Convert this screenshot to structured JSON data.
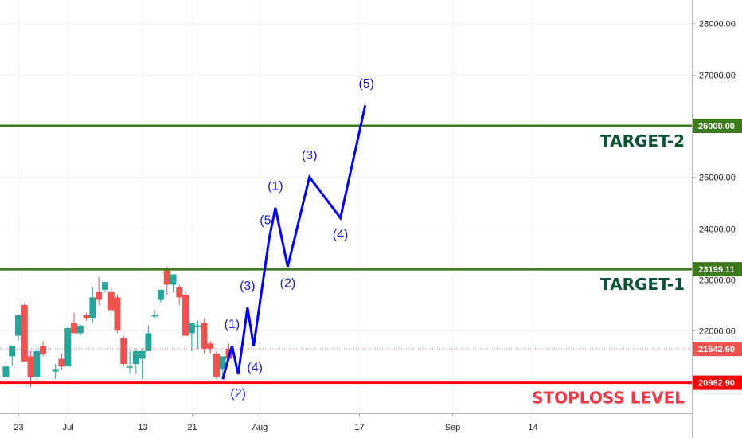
{
  "chart_data": {
    "type": "candlestick",
    "y_axis": {
      "min": 20500,
      "max": 28500,
      "ticks": [
        "28000.00",
        "27000.00",
        "26000.00",
        "25000.00",
        "24000.00",
        "23000.00",
        "22000.00"
      ]
    },
    "x_axis": {
      "ticks": [
        {
          "label": "23",
          "day": 0
        },
        {
          "label": "Jul",
          "day": 8
        },
        {
          "label": "13",
          "day": 20
        },
        {
          "label": "21",
          "day": 28
        },
        {
          "label": "Aug",
          "day": 39
        },
        {
          "label": "17",
          "day": 55
        },
        {
          "label": "Sep",
          "day": 70
        },
        {
          "label": "14",
          "day": 83
        }
      ],
      "day_range": [
        -2,
        83
      ]
    },
    "colors": {
      "up": "#26a69a",
      "down": "#ef5350",
      "target": "#3c7a1c",
      "stoploss": "#ff0000",
      "wave": "#0000ff",
      "last_price": "#ef5350",
      "target_text": "#0b5336",
      "stoploss_text": "#f23645"
    },
    "levels": [
      {
        "name": "TARGET-2",
        "label": "TARGET-2",
        "price": 26000.0,
        "badge": "26000.00",
        "kind": "target"
      },
      {
        "name": "TARGET-1",
        "label": "TARGET-1",
        "price": 23199.11,
        "badge": "23199.11",
        "kind": "target"
      },
      {
        "name": "STOPLOSS",
        "label": "STOPLOSS LEVEL",
        "price": 20982.9,
        "badge": "20982.90",
        "kind": "stoploss"
      }
    ],
    "last_price": {
      "price": 21642.6,
      "badge": "21642.60"
    },
    "candles": [
      {
        "day": -2,
        "o": 21100,
        "h": 21400,
        "l": 20950,
        "c": 21300
      },
      {
        "day": -1,
        "o": 21500,
        "h": 21700,
        "l": 21300,
        "c": 21700
      },
      {
        "day": 0,
        "o": 21900,
        "h": 22300,
        "l": 21800,
        "c": 22300
      },
      {
        "day": 1,
        "o": 22500,
        "h": 22550,
        "l": 21400,
        "c": 21400
      },
      {
        "day": 2,
        "o": 21500,
        "h": 21600,
        "l": 20900,
        "c": 21100
      },
      {
        "day": 3,
        "o": 21100,
        "h": 21700,
        "l": 21000,
        "c": 21600
      },
      {
        "day": 4,
        "o": 21700,
        "h": 21800,
        "l": 21500,
        "c": 21550
      },
      {
        "day": 6,
        "o": 21200,
        "h": 21350,
        "l": 21050,
        "c": 21250
      },
      {
        "day": 7,
        "o": 21450,
        "h": 21550,
        "l": 21250,
        "c": 21300
      },
      {
        "day": 8,
        "o": 21300,
        "h": 22100,
        "l": 21300,
        "c": 22050
      },
      {
        "day": 9,
        "o": 22150,
        "h": 22350,
        "l": 21950,
        "c": 21950
      },
      {
        "day": 10,
        "o": 21950,
        "h": 22150,
        "l": 21900,
        "c": 22100
      },
      {
        "day": 11,
        "o": 22300,
        "h": 22350,
        "l": 22200,
        "c": 22250
      },
      {
        "day": 12,
        "o": 22250,
        "h": 22850,
        "l": 22150,
        "c": 22650
      },
      {
        "day": 13,
        "o": 22750,
        "h": 23050,
        "l": 22500,
        "c": 22600
      },
      {
        "day": 14,
        "o": 22800,
        "h": 22950,
        "l": 22750,
        "c": 22950
      },
      {
        "day": 15,
        "o": 22750,
        "h": 22850,
        "l": 22350,
        "c": 22400
      },
      {
        "day": 16,
        "o": 22650,
        "h": 22700,
        "l": 21950,
        "c": 22000
      },
      {
        "day": 17,
        "o": 21850,
        "h": 21900,
        "l": 21300,
        "c": 21350
      },
      {
        "day": 18,
        "o": 21300,
        "h": 21600,
        "l": 21150,
        "c": 21300
      },
      {
        "day": 19,
        "o": 21350,
        "h": 21650,
        "l": 21150,
        "c": 21600
      },
      {
        "day": 20,
        "o": 21450,
        "h": 21650,
        "l": 21050,
        "c": 21600
      },
      {
        "day": 21,
        "o": 21600,
        "h": 22100,
        "l": 21600,
        "c": 21950
      },
      {
        "day": 22,
        "o": 22300,
        "h": 22400,
        "l": 22250,
        "c": 22300
      },
      {
        "day": 23,
        "o": 22600,
        "h": 22800,
        "l": 22550,
        "c": 22800
      },
      {
        "day": 24,
        "o": 23200,
        "h": 23250,
        "l": 22700,
        "c": 22900
      },
      {
        "day": 25,
        "o": 22900,
        "h": 23100,
        "l": 22750,
        "c": 23100
      },
      {
        "day": 26,
        "o": 22850,
        "h": 22900,
        "l": 22500,
        "c": 22650
      },
      {
        "day": 27,
        "o": 22700,
        "h": 22750,
        "l": 21900,
        "c": 21900
      },
      {
        "day": 28,
        "o": 21950,
        "h": 22150,
        "l": 21600,
        "c": 22150
      },
      {
        "day": 29,
        "o": 22100,
        "h": 22200,
        "l": 21650,
        "c": 22100
      },
      {
        "day": 30,
        "o": 22150,
        "h": 22250,
        "l": 21550,
        "c": 21650
      },
      {
        "day": 31,
        "o": 21750,
        "h": 21800,
        "l": 21550,
        "c": 21650
      },
      {
        "day": 32,
        "o": 21550,
        "h": 21600,
        "l": 21050,
        "c": 21100
      },
      {
        "day": 33,
        "o": 21250,
        "h": 21500,
        "l": 21100,
        "c": 21500
      },
      {
        "day": 34,
        "o": 21650,
        "h": 21750,
        "l": 21450,
        "c": 21450
      }
    ],
    "wave_path": [
      {
        "day": 33,
        "price": 21050
      },
      {
        "day": 34.5,
        "price": 21700
      },
      {
        "day": 35.5,
        "price": 21150
      },
      {
        "day": 37,
        "price": 22450
      },
      {
        "day": 38,
        "price": 21700
      },
      {
        "day": 40.5,
        "price": 23800
      },
      {
        "day": 41.5,
        "price": 24400
      },
      {
        "day": 43.5,
        "price": 23250
      },
      {
        "day": 47,
        "price": 25000
      },
      {
        "day": 52,
        "price": 24200
      },
      {
        "day": 56,
        "price": 26400
      }
    ],
    "wave_labels": [
      {
        "text": "(1)",
        "day": 34.5,
        "price": 22050
      },
      {
        "text": "(2)",
        "day": 35.5,
        "price": 20700
      },
      {
        "text": "(3)",
        "day": 37,
        "price": 22800
      },
      {
        "text": "(4)",
        "day": 38.2,
        "price": 21200
      },
      {
        "text": "(5",
        "day": 39.9,
        "price": 24080
      },
      {
        "text": "(1)",
        "day": 41.5,
        "price": 24750
      },
      {
        "text": "(2)",
        "day": 43.5,
        "price": 22850
      },
      {
        "text": "(3)",
        "day": 47,
        "price": 25350
      },
      {
        "text": "(4)",
        "day": 52,
        "price": 23800
      },
      {
        "text": "(5)",
        "day": 56.2,
        "price": 26750
      }
    ]
  }
}
